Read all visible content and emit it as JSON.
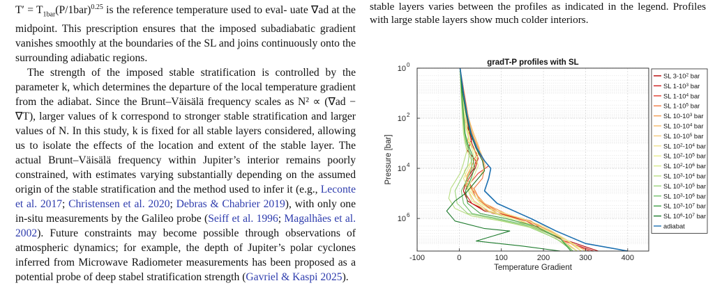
{
  "left_column": {
    "p1_line1_a": "T′ = T",
    "p1_sub": "1bar",
    "p1_line1_b": "(P/1bar)",
    "p1_sup": "0.25",
    "p1_line1_c": " is the reference temperature used to eval-",
    "p1_rest": "uate ∇ad at the midpoint. This prescription ensures that the imposed subadiabatic gradient vanishes smoothly at the boundaries of the SL and joins continuously onto the surrounding adiabatic regions.",
    "p2_a": "The strength of the imposed stable stratification is controlled by the parameter k, which determines the departure of the local temperature gradient from the adiabat. Since the Brunt–Väisälä frequency scales as N² ∝ (∇ad − ∇T), larger values of k correspond to stronger stable stratification and larger values of N. In this study, k is fixed for all stable layers considered, allowing us to isolate the effects of the location and extent of the stable layer. The actual Brunt–Väisälä frequency within Jupiter’s interior remains poorly constrained, with estimates varying substantially depending on the assumed origin of the stable stratification and the method used to infer it (e.g., ",
    "cite1": "Leconte et al. 2017",
    "sep1": "; ",
    "cite2": "Christensen et al. 2020",
    "sep2": "; ",
    "cite3": "Debras & Chabrier 2019",
    "p2_b": "), with only one in-situ measurements by the Galileo probe (",
    "cite4": "Seiff et al. 1996",
    "sep3": "; ",
    "cite5": "Magalhães et al. 2002",
    "p2_c": "). Future constraints may become possible through observations of atmospheric dynamics; for example, the depth of Jupiter’s polar cyclones inferred from Microwave Radiometer measurements has been proposed as a potential probe of deep stabel stratification strength (",
    "cite6": "Gavriel & Kaspi 2025",
    "p2_d": ")."
  },
  "right_column": {
    "caption": "stable layers varies between the profiles as indicated in the legend. Profiles with large stable layers show much colder interiors."
  },
  "chart_data": {
    "type": "line",
    "title": "gradT-P profiles with SL",
    "xlabel": "Temperature Gradient",
    "ylabel": "Pressure [bar]",
    "xlim": [
      -100,
      450
    ],
    "ylim_log10": [
      0,
      7.3
    ],
    "y_reversed": true,
    "y_log": true,
    "grid": true,
    "legend_position": "outside-right",
    "xticks": [
      "-100",
      "0",
      "100",
      "200",
      "300",
      "400"
    ],
    "yticks": [
      {
        "base": "10",
        "exp": "0"
      },
      {
        "base": "10",
        "exp": "2"
      },
      {
        "base": "10",
        "exp": "4"
      },
      {
        "base": "10",
        "exp": "6"
      }
    ],
    "series": [
      {
        "label_a": "SL 3-10",
        "label_sup": "2",
        "label_b": " bar",
        "color": "#b30000",
        "points": [
          [
            2,
            0
          ],
          [
            4,
            0.6
          ],
          [
            6,
            1.0
          ],
          [
            10,
            1.5
          ],
          [
            8,
            1.8
          ],
          [
            18,
            2.3
          ],
          [
            30,
            2.8
          ],
          [
            20,
            3.3
          ],
          [
            40,
            3.7
          ],
          [
            35,
            4.0
          ],
          [
            18,
            4.4
          ],
          [
            10,
            4.9
          ],
          [
            20,
            5.3
          ],
          [
            60,
            5.7
          ],
          [
            120,
            5.9
          ],
          [
            170,
            6.1
          ],
          [
            200,
            6.5
          ],
          [
            260,
            6.9
          ],
          [
            330,
            7.3
          ]
        ]
      },
      {
        "label_a": "SL 1-10",
        "label_sup": "3",
        "label_b": " bar",
        "color": "#cc1a1a",
        "points": [
          [
            2,
            0
          ],
          [
            8,
            0.8
          ],
          [
            14,
            1.6
          ],
          [
            22,
            2.4
          ],
          [
            30,
            3.0
          ],
          [
            45,
            3.6
          ],
          [
            38,
            4.0
          ],
          [
            20,
            4.5
          ],
          [
            14,
            5.0
          ],
          [
            30,
            5.4
          ],
          [
            80,
            5.8
          ],
          [
            150,
            6.0
          ],
          [
            190,
            6.4
          ],
          [
            250,
            6.9
          ],
          [
            320,
            7.3
          ]
        ]
      },
      {
        "label_a": "SL 1-10",
        "label_sup": "4",
        "label_b": " bar",
        "color": "#e03c2e",
        "points": [
          [
            2,
            0
          ],
          [
            10,
            1.0
          ],
          [
            18,
            1.8
          ],
          [
            26,
            2.6
          ],
          [
            40,
            3.2
          ],
          [
            55,
            3.6
          ],
          [
            70,
            3.9
          ],
          [
            45,
            4.2
          ],
          [
            25,
            4.6
          ],
          [
            40,
            5.2
          ],
          [
            90,
            5.8
          ],
          [
            160,
            6.1
          ],
          [
            200,
            6.5
          ],
          [
            250,
            6.9
          ],
          [
            310,
            7.3
          ]
        ]
      },
      {
        "label_a": "SL 1-10",
        "label_sup": "5",
        "label_b": " bar",
        "color": "#f07840",
        "points": [
          [
            2,
            0
          ],
          [
            12,
            1.0
          ],
          [
            20,
            1.8
          ],
          [
            30,
            2.6
          ],
          [
            45,
            3.2
          ],
          [
            55,
            3.6
          ],
          [
            60,
            4.0
          ],
          [
            55,
            4.4
          ],
          [
            35,
            4.8
          ],
          [
            50,
            5.3
          ],
          [
            100,
            5.8
          ],
          [
            170,
            6.1
          ],
          [
            210,
            6.5
          ],
          [
            260,
            6.9
          ],
          [
            300,
            7.3
          ]
        ]
      },
      {
        "label_a": "SL 10-10",
        "label_sup": "3",
        "label_b": " bar",
        "color": "#f29a50",
        "points": [
          [
            2,
            0
          ],
          [
            6,
            0.8
          ],
          [
            10,
            1.2
          ],
          [
            16,
            1.6
          ],
          [
            26,
            2.2
          ],
          [
            20,
            2.9
          ],
          [
            42,
            3.4
          ],
          [
            30,
            3.9
          ],
          [
            18,
            4.3
          ],
          [
            28,
            4.8
          ],
          [
            60,
            5.4
          ],
          [
            110,
            5.8
          ],
          [
            180,
            6.2
          ],
          [
            240,
            6.7
          ],
          [
            290,
            7.3
          ]
        ]
      },
      {
        "label_a": "SL 10-10",
        "label_sup": "4",
        "label_b": " bar",
        "color": "#f5b968",
        "points": [
          [
            2,
            0
          ],
          [
            8,
            0.9
          ],
          [
            14,
            1.4
          ],
          [
            22,
            2.0
          ],
          [
            34,
            2.6
          ],
          [
            48,
            3.2
          ],
          [
            40,
            3.8
          ],
          [
            22,
            4.2
          ],
          [
            15,
            4.7
          ],
          [
            35,
            5.3
          ],
          [
            70,
            5.7
          ],
          [
            130,
            6.0
          ],
          [
            190,
            6.4
          ],
          [
            240,
            6.8
          ],
          [
            280,
            7.3
          ]
        ]
      },
      {
        "label_a": "SL 10-10",
        "label_sup": "5",
        "label_b": " bar",
        "color": "#f3c97c",
        "points": [
          [
            2,
            0
          ],
          [
            9,
            1.0
          ],
          [
            16,
            1.6
          ],
          [
            24,
            2.2
          ],
          [
            36,
            2.8
          ],
          [
            52,
            3.4
          ],
          [
            62,
            3.9
          ],
          [
            50,
            4.3
          ],
          [
            30,
            4.7
          ],
          [
            45,
            5.2
          ],
          [
            85,
            5.7
          ],
          [
            150,
            6.0
          ],
          [
            200,
            6.4
          ],
          [
            250,
            6.8
          ],
          [
            290,
            7.3
          ]
        ]
      },
      {
        "label_a": "SL 10",
        "label_sup": "2",
        "label_b": "-10",
        "label_sup2": "4",
        "label_c": " bar",
        "color": "#efe08c",
        "points": [
          [
            2,
            0
          ],
          [
            5,
            1.0
          ],
          [
            8,
            1.6
          ],
          [
            12,
            2.0
          ],
          [
            16,
            2.4
          ],
          [
            22,
            2.8
          ],
          [
            18,
            3.3
          ],
          [
            30,
            3.7
          ],
          [
            12,
            4.1
          ],
          [
            20,
            4.6
          ],
          [
            40,
            5.2
          ],
          [
            70,
            5.6
          ],
          [
            130,
            5.9
          ],
          [
            200,
            6.3
          ],
          [
            260,
            6.9
          ],
          [
            300,
            7.3
          ]
        ]
      },
      {
        "label_a": "SL 10",
        "label_sup": "2",
        "label_b": "-10",
        "label_sup2": "5",
        "label_c": " bar",
        "color": "#e8ec8c",
        "points": [
          [
            2,
            0
          ],
          [
            6,
            1.0
          ],
          [
            10,
            1.6
          ],
          [
            15,
            2.1
          ],
          [
            20,
            2.6
          ],
          [
            26,
            3.0
          ],
          [
            35,
            3.5
          ],
          [
            22,
            4.0
          ],
          [
            10,
            4.4
          ],
          [
            25,
            4.9
          ],
          [
            50,
            5.4
          ],
          [
            90,
            5.8
          ],
          [
            150,
            6.1
          ],
          [
            210,
            6.5
          ],
          [
            270,
            7.0
          ],
          [
            290,
            7.3
          ]
        ]
      },
      {
        "label_a": "SL 10",
        "label_sup": "2",
        "label_b": "-10",
        "label_sup2": "6",
        "label_c": " bar",
        "color": "#d6ea8a",
        "points": [
          [
            2,
            0
          ],
          [
            7,
            1.0
          ],
          [
            12,
            1.7
          ],
          [
            18,
            2.3
          ],
          [
            25,
            2.9
          ],
          [
            38,
            3.4
          ],
          [
            45,
            3.9
          ],
          [
            35,
            4.3
          ],
          [
            20,
            4.8
          ],
          [
            30,
            5.3
          ],
          [
            65,
            5.7
          ],
          [
            120,
            6.0
          ],
          [
            180,
            6.4
          ],
          [
            240,
            6.9
          ],
          [
            280,
            7.3
          ]
        ]
      },
      {
        "label_a": "SL 10",
        "label_sup": "3",
        "label_b": "-10",
        "label_sup2": "4",
        "label_c": " bar",
        "color": "#b8dd82",
        "points": [
          [
            2,
            0
          ],
          [
            4,
            1.0
          ],
          [
            7,
            1.8
          ],
          [
            10,
            2.6
          ],
          [
            14,
            3.0
          ],
          [
            18,
            3.3
          ],
          [
            10,
            3.8
          ],
          [
            2,
            4.2
          ],
          [
            -20,
            4.8
          ],
          [
            -25,
            5.2
          ],
          [
            -10,
            5.6
          ],
          [
            30,
            5.9
          ],
          [
            100,
            6.1
          ],
          [
            180,
            6.4
          ],
          [
            240,
            6.9
          ],
          [
            270,
            7.3
          ]
        ]
      },
      {
        "label_a": "SL 10",
        "label_sup": "3",
        "label_b": "-10",
        "label_sup2": "5",
        "label_c": " bar",
        "color": "#9ad27a",
        "points": [
          [
            2,
            0
          ],
          [
            5,
            1.0
          ],
          [
            8,
            1.8
          ],
          [
            12,
            2.6
          ],
          [
            16,
            3.0
          ],
          [
            24,
            3.4
          ],
          [
            20,
            3.9
          ],
          [
            8,
            4.3
          ],
          [
            -10,
            4.9
          ],
          [
            -5,
            5.4
          ],
          [
            20,
            5.8
          ],
          [
            80,
            6.0
          ],
          [
            160,
            6.3
          ],
          [
            230,
            6.8
          ],
          [
            270,
            7.3
          ]
        ]
      },
      {
        "label_a": "SL 10",
        "label_sup": "3",
        "label_b": "-10",
        "label_sup2": "6",
        "label_c": " bar",
        "color": "#72c06a",
        "points": [
          [
            2,
            0
          ],
          [
            6,
            1.0
          ],
          [
            9,
            1.8
          ],
          [
            13,
            2.6
          ],
          [
            18,
            3.0
          ],
          [
            28,
            3.5
          ],
          [
            30,
            4.0
          ],
          [
            20,
            4.4
          ],
          [
            5,
            4.9
          ],
          [
            10,
            5.4
          ],
          [
            30,
            5.8
          ],
          [
            90,
            6.0
          ],
          [
            170,
            6.3
          ],
          [
            240,
            6.8
          ],
          [
            270,
            7.3
          ]
        ]
      },
      {
        "label_a": "SL 10",
        "label_sup": "3",
        "label_b": "-10",
        "label_sup2": "7",
        "label_c": " bar",
        "color": "#3f9e45",
        "points": [
          [
            2,
            0
          ],
          [
            6,
            1.0
          ],
          [
            10,
            1.8
          ],
          [
            14,
            2.6
          ],
          [
            20,
            3.0
          ],
          [
            32,
            3.5
          ],
          [
            36,
            4.0
          ],
          [
            28,
            4.4
          ],
          [
            15,
            4.9
          ],
          [
            20,
            5.4
          ],
          [
            50,
            5.8
          ],
          [
            110,
            6.0
          ],
          [
            180,
            6.3
          ],
          [
            240,
            6.8
          ],
          [
            265,
            7.3
          ]
        ]
      },
      {
        "label_a": "SL 10",
        "label_sup": "6",
        "label_b": "-10",
        "label_sup2": "7",
        "label_c": " bar",
        "color": "#1c7a2c",
        "points": [
          [
            2,
            0
          ],
          [
            8,
            1.0
          ],
          [
            16,
            1.8
          ],
          [
            26,
            2.6
          ],
          [
            40,
            3.2
          ],
          [
            55,
            3.7
          ],
          [
            60,
            4.1
          ],
          [
            40,
            4.5
          ],
          [
            15,
            5.0
          ],
          [
            -10,
            5.3
          ],
          [
            -30,
            5.7
          ],
          [
            -10,
            6.1
          ],
          [
            60,
            6.4
          ],
          [
            120,
            6.5
          ],
          [
            80,
            6.7
          ],
          [
            40,
            6.9
          ],
          [
            150,
            7.1
          ],
          [
            240,
            7.3
          ]
        ]
      },
      {
        "label_a": "adiabat",
        "color": "#1b6fb0",
        "points": [
          [
            2,
            0
          ],
          [
            10,
            1.0
          ],
          [
            18,
            1.8
          ],
          [
            28,
            2.6
          ],
          [
            42,
            3.2
          ],
          [
            60,
            3.7
          ],
          [
            75,
            4.0
          ],
          [
            70,
            4.4
          ],
          [
            60,
            4.9
          ],
          [
            90,
            5.4
          ],
          [
            170,
            6.0
          ],
          [
            230,
            6.5
          ],
          [
            300,
            7.0
          ],
          [
            400,
            7.3
          ]
        ]
      }
    ]
  }
}
